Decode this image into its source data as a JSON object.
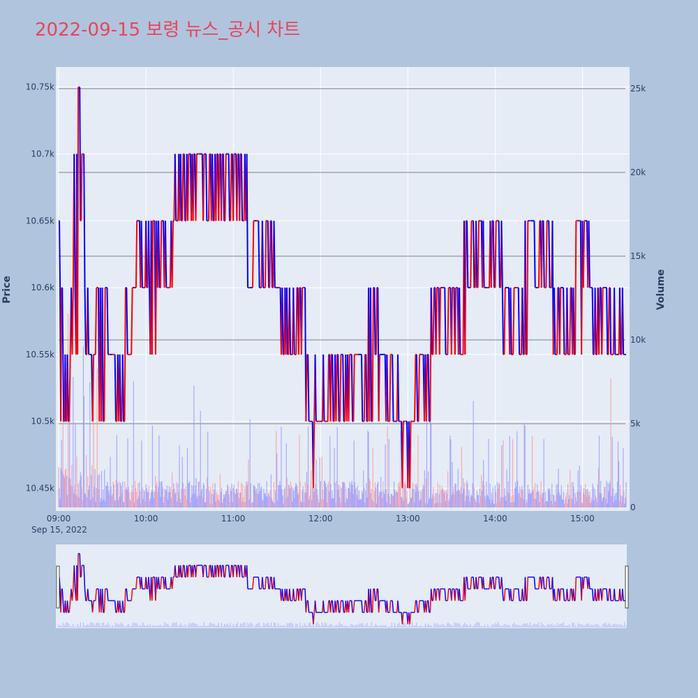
{
  "title": "2022-09-15 보령 뉴스_공시 차트",
  "colors": {
    "background": "#b0c4de",
    "plot_bg": "#e5ecf6",
    "title": "#e8455a",
    "up": "#ff0000",
    "down": "#0000ff",
    "volume_down": "#9999ff",
    "volume_up": "#ff9999",
    "ref_line": "#7f7f7f"
  },
  "chart_data": {
    "type": "line",
    "y_left_label": "Price",
    "y_right_label": "Volume",
    "x_tick_labels": [
      "09:00",
      "10:00",
      "11:00",
      "12:00",
      "13:00",
      "14:00",
      "15:00"
    ],
    "x_date_label": "Sep 15, 2022",
    "x_range": [
      "09:00",
      "15:30"
    ],
    "y_price_ticks": [
      10450,
      10500,
      10550,
      10600,
      10650,
      10700,
      10750
    ],
    "y_price_tick_labels": [
      "10.45k",
      "10.5k",
      "10.55k",
      "10.6k",
      "10.65k",
      "10.7k",
      "10.75k"
    ],
    "y_price_range": [
      10433,
      10765
    ],
    "y_volume_ticks": [
      0,
      5000,
      10000,
      15000,
      20000,
      25000
    ],
    "y_volume_tick_labels": [
      "0",
      "5k",
      "10k",
      "15k",
      "20k",
      "25k"
    ],
    "y_volume_range": [
      0,
      25000
    ],
    "reference_lines_volume": [
      25000,
      20000,
      15000,
      10000,
      5000
    ],
    "grid": true,
    "rangeslider": true,
    "price_path": [
      [
        "09:00",
        10650
      ],
      [
        "09:01",
        10500
      ],
      [
        "09:02",
        10600
      ],
      [
        "09:03",
        10550
      ],
      [
        "09:04",
        10500
      ],
      [
        "09:05",
        10550
      ],
      [
        "09:06",
        10500
      ],
      [
        "09:08",
        10550
      ],
      [
        "09:10",
        10600
      ],
      [
        "09:12",
        10700
      ],
      [
        "09:13",
        10550
      ],
      [
        "09:14",
        10750
      ],
      [
        "09:15",
        10650
      ],
      [
        "09:16",
        10700
      ],
      [
        "09:18",
        10550
      ],
      [
        "09:20",
        10600
      ],
      [
        "09:22",
        10550
      ],
      [
        "09:24",
        10500
      ],
      [
        "09:26",
        10550
      ],
      [
        "09:28",
        10600
      ],
      [
        "09:30",
        10500
      ],
      [
        "09:32",
        10600
      ],
      [
        "09:34",
        10500
      ],
      [
        "09:36",
        10550
      ],
      [
        "09:38",
        10500
      ],
      [
        "09:42",
        10550
      ],
      [
        "09:44",
        10500
      ],
      [
        "09:46",
        10550
      ],
      [
        "09:48",
        10600
      ],
      [
        "09:50",
        10550
      ],
      [
        "09:52",
        10600
      ],
      [
        "09:55",
        10650
      ],
      [
        "10:00",
        10600
      ],
      [
        "10:03",
        10650
      ],
      [
        "10:06",
        10550
      ],
      [
        "10:08",
        10650
      ],
      [
        "10:12",
        10600
      ],
      [
        "10:14",
        10650
      ],
      [
        "10:18",
        10600
      ],
      [
        "10:20",
        10650
      ],
      [
        "10:22",
        10700
      ],
      [
        "10:25",
        10650
      ],
      [
        "10:30",
        10700
      ],
      [
        "10:33",
        10650
      ],
      [
        "10:40",
        10700
      ],
      [
        "10:45",
        10650
      ],
      [
        "10:50",
        10700
      ],
      [
        "10:55",
        10650
      ],
      [
        "11:00",
        10700
      ],
      [
        "11:05",
        10650
      ],
      [
        "11:08",
        10700
      ],
      [
        "11:10",
        10650
      ],
      [
        "11:12",
        10600
      ],
      [
        "11:14",
        10650
      ],
      [
        "11:18",
        10650
      ],
      [
        "11:20",
        10600
      ],
      [
        "11:22",
        10650
      ],
      [
        "11:25",
        10600
      ],
      [
        "11:28",
        10650
      ],
      [
        "11:33",
        10600
      ],
      [
        "11:35",
        10550
      ],
      [
        "11:38",
        10600
      ],
      [
        "11:42",
        10550
      ],
      [
        "11:45",
        10600
      ],
      [
        "11:50",
        10550
      ],
      [
        "11:52",
        10500
      ],
      [
        "12:00",
        10500
      ],
      [
        "12:05",
        10500
      ],
      [
        "12:10",
        10550
      ],
      [
        "12:14",
        10500
      ],
      [
        "12:18",
        10550
      ],
      [
        "12:22",
        10500
      ],
      [
        "12:27",
        10550
      ],
      [
        "12:33",
        10500
      ],
      [
        "12:37",
        10600
      ],
      [
        "12:40",
        10550
      ],
      [
        "12:45",
        10500
      ],
      [
        "12:50",
        10550
      ],
      [
        "12:55",
        10500
      ],
      [
        "13:00",
        10500
      ],
      [
        "13:02",
        10450
      ],
      [
        "13:04",
        10500
      ],
      [
        "13:08",
        10550
      ],
      [
        "13:12",
        10500
      ],
      [
        "13:16",
        10550
      ],
      [
        "13:20",
        10600
      ],
      [
        "13:26",
        10550
      ],
      [
        "13:30",
        10600
      ],
      [
        "13:36",
        10550
      ],
      [
        "13:40",
        10650
      ],
      [
        "13:45",
        10600
      ],
      [
        "13:50",
        10650
      ],
      [
        "13:56",
        10600
      ],
      [
        "14:00",
        10650
      ],
      [
        "14:05",
        10600
      ],
      [
        "14:10",
        10550
      ],
      [
        "14:16",
        10600
      ],
      [
        "14:20",
        10550
      ],
      [
        "14:25",
        10650
      ],
      [
        "14:30",
        10600
      ],
      [
        "14:35",
        10650
      ],
      [
        "14:40",
        10600
      ],
      [
        "14:45",
        10550
      ],
      [
        "14:50",
        10600
      ],
      [
        "14:55",
        10550
      ],
      [
        "15:00",
        10650
      ],
      [
        "15:05",
        10600
      ],
      [
        "15:08",
        10550
      ],
      [
        "15:12",
        10600
      ],
      [
        "15:16",
        10550
      ],
      [
        "15:19",
        10600
      ],
      [
        "15:20",
        10550
      ],
      [
        "15:30",
        10550
      ]
    ]
  }
}
